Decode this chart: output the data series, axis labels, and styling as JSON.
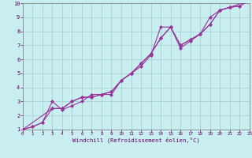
{
  "xlabel": "Windchill (Refroidissement éolien,°C)",
  "bg_color": "#c8eef0",
  "grid_color": "#a0ccd0",
  "line_color": "#993399",
  "xlim": [
    0,
    23
  ],
  "ylim": [
    1,
    10
  ],
  "xticks": [
    0,
    1,
    2,
    3,
    4,
    5,
    6,
    7,
    8,
    9,
    10,
    11,
    12,
    13,
    14,
    15,
    16,
    17,
    18,
    19,
    20,
    21,
    22,
    23
  ],
  "yticks": [
    1,
    2,
    3,
    4,
    5,
    6,
    7,
    8,
    9,
    10
  ],
  "series1_x": [
    0,
    1,
    2,
    3,
    4,
    5,
    6,
    7,
    8,
    9,
    10,
    11,
    12,
    13,
    14,
    15,
    16,
    17,
    18,
    19,
    20,
    21,
    22,
    23
  ],
  "series1_y": [
    1.0,
    1.2,
    1.5,
    2.5,
    2.5,
    3.0,
    3.3,
    3.3,
    3.5,
    3.7,
    4.5,
    5.0,
    5.7,
    6.4,
    7.5,
    8.3,
    7.0,
    7.4,
    7.8,
    8.5,
    9.5,
    9.7,
    9.8,
    10.2
  ],
  "series2_x": [
    0,
    1,
    2,
    3,
    4,
    5,
    6,
    7,
    8,
    9,
    10,
    11,
    12,
    13,
    14,
    15,
    16,
    17,
    18,
    19,
    20,
    21,
    22,
    23
  ],
  "series2_y": [
    1.0,
    1.2,
    1.5,
    3.0,
    2.4,
    2.7,
    3.0,
    3.5,
    3.5,
    3.5,
    4.5,
    5.0,
    5.5,
    6.3,
    8.3,
    8.3,
    6.8,
    7.3,
    7.8,
    9.0,
    9.5,
    9.7,
    9.8,
    10.2
  ],
  "series3_x": [
    0,
    3,
    4,
    5,
    6,
    7,
    8,
    9,
    10,
    11,
    12,
    13,
    14,
    15,
    16,
    17,
    18,
    19,
    20,
    21,
    23
  ],
  "series3_y": [
    1.0,
    2.5,
    2.5,
    3.0,
    3.3,
    3.3,
    3.5,
    3.7,
    4.5,
    5.0,
    5.7,
    6.4,
    7.5,
    8.3,
    7.0,
    7.4,
    7.8,
    8.5,
    9.5,
    9.7,
    10.2
  ]
}
